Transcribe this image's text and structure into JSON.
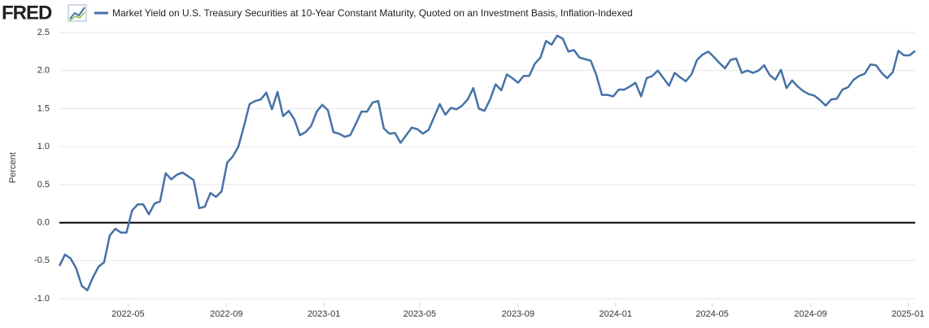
{
  "logo": "FRED",
  "chart_data": {
    "type": "line",
    "y_label": "Percent",
    "grid": true,
    "zero_line": true,
    "ylim": [
      -1.0,
      2.5
    ],
    "yticks": [
      {
        "value": -1.0,
        "label": "-1.0"
      },
      {
        "value": -0.5,
        "label": "-0.5"
      },
      {
        "value": 0,
        "label": "0.0"
      },
      {
        "value": 0.5,
        "label": "0.5"
      },
      {
        "value": 1.0,
        "label": "1.0"
      },
      {
        "value": 1.5,
        "label": "1.5"
      },
      {
        "value": 2.0,
        "label": "2.0"
      },
      {
        "value": 2.5,
        "label": "2.5"
      }
    ],
    "xlim": [
      "2022-02-04",
      "2025-01-10"
    ],
    "xticks": [
      "2022-05",
      "2022-09",
      "2023-01",
      "2023-05",
      "2023-09",
      "2024-01",
      "2024-05",
      "2024-09",
      "2025-01"
    ],
    "x": [
      "2022-02-04",
      "2022-02-11",
      "2022-02-18",
      "2022-02-25",
      "2022-03-04",
      "2022-03-11",
      "2022-03-18",
      "2022-03-25",
      "2022-04-01",
      "2022-04-08",
      "2022-04-15",
      "2022-04-22",
      "2022-04-29",
      "2022-05-06",
      "2022-05-13",
      "2022-05-20",
      "2022-05-27",
      "2022-06-03",
      "2022-06-10",
      "2022-06-17",
      "2022-06-24",
      "2022-07-01",
      "2022-07-08",
      "2022-07-15",
      "2022-07-22",
      "2022-07-29",
      "2022-08-05",
      "2022-08-12",
      "2022-08-19",
      "2022-08-26",
      "2022-09-02",
      "2022-09-09",
      "2022-09-16",
      "2022-09-23",
      "2022-09-30",
      "2022-10-07",
      "2022-10-14",
      "2022-10-21",
      "2022-10-28",
      "2022-11-04",
      "2022-11-11",
      "2022-11-18",
      "2022-11-25",
      "2022-12-02",
      "2022-12-09",
      "2022-12-16",
      "2022-12-23",
      "2022-12-30",
      "2023-01-06",
      "2023-01-13",
      "2023-01-20",
      "2023-01-27",
      "2023-02-03",
      "2023-02-10",
      "2023-02-17",
      "2023-02-24",
      "2023-03-03",
      "2023-03-10",
      "2023-03-17",
      "2023-03-24",
      "2023-03-31",
      "2023-04-07",
      "2023-04-14",
      "2023-04-21",
      "2023-04-28",
      "2023-05-05",
      "2023-05-12",
      "2023-05-19",
      "2023-05-26",
      "2023-06-02",
      "2023-06-09",
      "2023-06-16",
      "2023-06-23",
      "2023-06-30",
      "2023-07-07",
      "2023-07-14",
      "2023-07-21",
      "2023-07-28",
      "2023-08-04",
      "2023-08-11",
      "2023-08-18",
      "2023-08-25",
      "2023-09-01",
      "2023-09-08",
      "2023-09-15",
      "2023-09-22",
      "2023-09-29",
      "2023-10-06",
      "2023-10-13",
      "2023-10-20",
      "2023-10-27",
      "2023-11-03",
      "2023-11-10",
      "2023-11-17",
      "2023-11-24",
      "2023-12-01",
      "2023-12-08",
      "2023-12-15",
      "2023-12-22",
      "2023-12-29",
      "2024-01-05",
      "2024-01-12",
      "2024-01-19",
      "2024-01-26",
      "2024-02-02",
      "2024-02-09",
      "2024-02-16",
      "2024-02-23",
      "2024-03-01",
      "2024-03-08",
      "2024-03-15",
      "2024-03-22",
      "2024-03-29",
      "2024-04-05",
      "2024-04-12",
      "2024-04-19",
      "2024-04-26",
      "2024-05-03",
      "2024-05-10",
      "2024-05-17",
      "2024-05-24",
      "2024-05-31",
      "2024-06-07",
      "2024-06-14",
      "2024-06-21",
      "2024-06-28",
      "2024-07-05",
      "2024-07-12",
      "2024-07-19",
      "2024-07-26",
      "2024-08-02",
      "2024-08-09",
      "2024-08-16",
      "2024-08-23",
      "2024-08-30",
      "2024-09-06",
      "2024-09-13",
      "2024-09-20",
      "2024-09-27",
      "2024-10-04",
      "2024-10-11",
      "2024-10-18",
      "2024-10-25",
      "2024-11-01",
      "2024-11-08",
      "2024-11-15",
      "2024-11-22",
      "2024-11-29",
      "2024-12-06",
      "2024-12-13",
      "2024-12-20",
      "2024-12-27",
      "2025-01-03",
      "2025-01-10"
    ],
    "series": [
      {
        "name": "Market Yield on U.S. Treasury Securities at 10-Year Constant Maturity, Quoted on an Investment Basis, Inflation-Indexed",
        "color": "#4572a7",
        "values": [
          -0.57,
          -0.42,
          -0.47,
          -0.6,
          -0.83,
          -0.89,
          -0.72,
          -0.58,
          -0.52,
          -0.17,
          -0.08,
          -0.13,
          -0.13,
          0.16,
          0.24,
          0.24,
          0.11,
          0.25,
          0.28,
          0.65,
          0.57,
          0.63,
          0.66,
          0.61,
          0.56,
          0.19,
          0.21,
          0.39,
          0.34,
          0.41,
          0.79,
          0.87,
          1.0,
          1.27,
          1.56,
          1.6,
          1.62,
          1.71,
          1.49,
          1.72,
          1.4,
          1.47,
          1.36,
          1.15,
          1.19,
          1.27,
          1.46,
          1.55,
          1.48,
          1.19,
          1.17,
          1.13,
          1.15,
          1.3,
          1.46,
          1.46,
          1.58,
          1.6,
          1.24,
          1.17,
          1.18,
          1.05,
          1.15,
          1.25,
          1.23,
          1.17,
          1.22,
          1.39,
          1.56,
          1.42,
          1.51,
          1.49,
          1.54,
          1.62,
          1.77,
          1.5,
          1.47,
          1.62,
          1.82,
          1.74,
          1.95,
          1.9,
          1.84,
          1.93,
          1.93,
          2.09,
          2.17,
          2.39,
          2.34,
          2.46,
          2.42,
          2.25,
          2.27,
          2.17,
          2.15,
          2.13,
          1.94,
          1.68,
          1.68,
          1.66,
          1.75,
          1.75,
          1.79,
          1.84,
          1.66,
          1.9,
          1.93,
          2.0,
          1.9,
          1.8,
          1.97,
          1.91,
          1.86,
          1.95,
          2.14,
          2.21,
          2.25,
          2.18,
          2.1,
          2.03,
          2.14,
          2.16,
          1.97,
          2.0,
          1.97,
          2.0,
          2.07,
          1.94,
          1.88,
          2.01,
          1.77,
          1.87,
          1.79,
          1.73,
          1.69,
          1.67,
          1.61,
          1.54,
          1.62,
          1.63,
          1.75,
          1.78,
          1.88,
          1.93,
          1.96,
          2.08,
          2.07,
          1.97,
          1.9,
          1.98,
          2.26,
          2.2,
          2.2,
          2.26
        ]
      }
    ]
  }
}
